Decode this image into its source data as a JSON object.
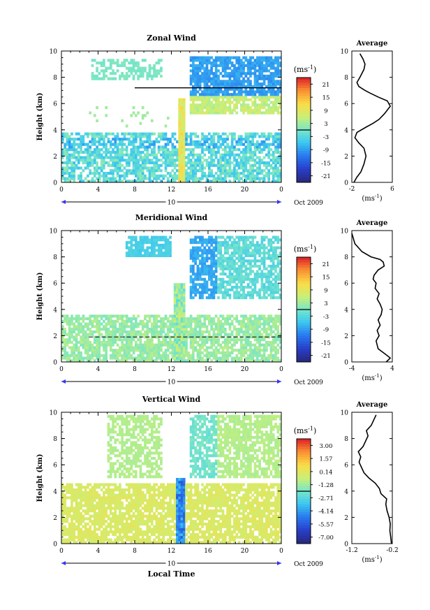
{
  "date_label": "Oct 2009",
  "day_label": "10",
  "xlabel": "Local Time",
  "chart_data": [
    {
      "type": "heatmap",
      "title": "Zonal Wind",
      "ylabel": "Height (km)",
      "xlim": [
        0,
        24
      ],
      "ylim": [
        0,
        10
      ],
      "xticks": [
        "0",
        "4",
        "8",
        "12",
        "16",
        "20",
        "0"
      ],
      "yticks": [
        "0",
        "2",
        "4",
        "6",
        "8",
        "10"
      ],
      "colorbar": {
        "unit_base": "(ms",
        "unit_exp": "-1",
        "unit_close": ")",
        "ticks": [
          "21",
          "15",
          "9",
          "3",
          "-3",
          "-9",
          "-15",
          "-21"
        ],
        "range": [
          -24,
          24
        ]
      },
      "profile": {
        "title": "Average",
        "xticks": [
          "-2",
          "6"
        ],
        "xlim": [
          -2,
          6
        ],
        "ylim": [
          0,
          10
        ],
        "unit_base": "(ms",
        "unit_exp": "-1",
        "unit_close": ")",
        "x": [
          -1.6,
          -1.0,
          -0.2,
          0.4,
          0.8,
          0.4,
          -0.6,
          -1.4,
          -1.0,
          0.8,
          2.2,
          3.4,
          4.4,
          5.6,
          5.0,
          3.2,
          1.6,
          0.6,
          -0.6,
          -1.0,
          -0.4,
          0.4,
          0.6,
          0.2,
          -0.4
        ],
        "y": [
          0,
          0.4,
          0.8,
          1.4,
          2.0,
          2.6,
          3.0,
          3.4,
          3.8,
          4.2,
          4.5,
          4.8,
          5.2,
          5.8,
          6.2,
          6.5,
          6.8,
          7.0,
          7.3,
          7.6,
          8.0,
          8.6,
          9.0,
          9.4,
          9.8
        ]
      }
    },
    {
      "type": "heatmap",
      "title": "Meridional Wind",
      "ylabel": "Height (km)",
      "xlim": [
        0,
        24
      ],
      "ylim": [
        0,
        10
      ],
      "xticks": [
        "0",
        "4",
        "8",
        "12",
        "16",
        "20",
        "0"
      ],
      "yticks": [
        "0",
        "2",
        "4",
        "6",
        "8",
        "10"
      ],
      "colorbar": {
        "unit_base": "(ms",
        "unit_exp": "-1",
        "unit_close": ")",
        "ticks": [
          "21",
          "15",
          "9",
          "3",
          "-3",
          "-9",
          "-15",
          "-21"
        ],
        "range": [
          -24,
          24
        ]
      },
      "profile": {
        "title": "Average",
        "xticks": [
          "-4",
          "4"
        ],
        "xlim": [
          -4,
          4
        ],
        "ylim": [
          0,
          10
        ],
        "unit_base": "(ms",
        "unit_exp": "-1",
        "unit_close": ")",
        "x": [
          2.8,
          3.6,
          2.6,
          1.2,
          0.8,
          1.4,
          1.0,
          1.6,
          1.2,
          1.8,
          2.0,
          1.6,
          1.0,
          1.4,
          0.6,
          0.8,
          0.2,
          0.4,
          1.2,
          2.4,
          2.2,
          1.6,
          -0.2,
          -2.0,
          -3.4,
          -4.0
        ],
        "y": [
          0,
          0.3,
          0.6,
          1.0,
          1.6,
          2.0,
          2.4,
          2.8,
          3.2,
          3.6,
          4.0,
          4.4,
          4.8,
          5.2,
          5.6,
          6.0,
          6.3,
          6.6,
          7.0,
          7.3,
          7.6,
          7.8,
          8.0,
          8.4,
          9.0,
          9.8
        ]
      }
    },
    {
      "type": "heatmap",
      "title": "Vertical Wind",
      "ylabel": "Height (km)",
      "xlabel": "Local Time",
      "xlim": [
        0,
        24
      ],
      "ylim": [
        0,
        10
      ],
      "xticks": [
        "0",
        "4",
        "8",
        "12",
        "16",
        "20",
        "0"
      ],
      "yticks": [
        "0",
        "2",
        "4",
        "6",
        "8",
        "10"
      ],
      "colorbar": {
        "unit_base": "(ms",
        "unit_exp": "-1",
        "unit_close": ")",
        "ticks": [
          "3.00",
          "1.57",
          "0.14",
          "-1.28",
          "-2.71",
          "-4.14",
          "-5.57",
          "-7.00"
        ],
        "range": [
          -7.7,
          3.7
        ]
      },
      "profile": {
        "title": "Average",
        "xticks": [
          "-1.2",
          "-0.2"
        ],
        "xlim": [
          -1.2,
          -0.2
        ],
        "ylim": [
          0,
          10
        ],
        "unit_base": "(ms",
        "unit_exp": "-1",
        "unit_close": ")",
        "x": [
          -0.22,
          -0.24,
          -0.26,
          -0.25,
          -0.28,
          -0.33,
          -0.36,
          -0.34,
          -0.48,
          -0.52,
          -0.62,
          -0.78,
          -0.9,
          -0.96,
          -1.02,
          -0.98,
          -1.04,
          -0.92,
          -0.86,
          -0.8,
          -0.84,
          -0.72,
          -0.66,
          -0.6
        ],
        "y": [
          0,
          0.5,
          1.0,
          1.5,
          2.0,
          2.5,
          3.0,
          3.4,
          3.8,
          4.2,
          4.6,
          5.0,
          5.4,
          5.8,
          6.2,
          6.6,
          7.0,
          7.4,
          7.8,
          8.2,
          8.6,
          9.0,
          9.4,
          9.8
        ]
      }
    }
  ]
}
